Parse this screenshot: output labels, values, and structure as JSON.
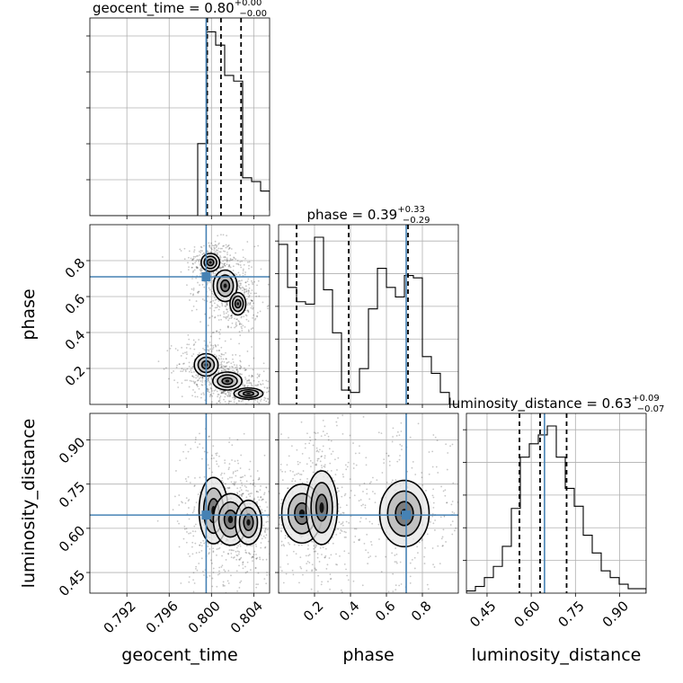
{
  "chart_data": {
    "type": "corner",
    "truth": {
      "geocent_time": 0.7995,
      "phase": 0.71,
      "luminosity_distance": 0.645
    },
    "params": [
      {
        "name": "geocent_time",
        "label": "geocent_time",
        "title_main": "geocent_time = 0.80",
        "title_sup": "+0.00",
        "title_sub": "−0.00",
        "range": [
          0.7885,
          0.8055
        ],
        "ticks": [
          0.792,
          0.796,
          0.8,
          0.804
        ],
        "tick_labels": [
          "0.792",
          "0.796",
          "0.800",
          "0.804"
        ],
        "quantiles": [
          0.7996,
          0.8009,
          0.8028
        ]
      },
      {
        "name": "phase",
        "label": "phase",
        "title_main": "phase = 0.39",
        "title_sup": "+0.33",
        "title_sub": "−0.29",
        "range": [
          0.0,
          1.0
        ],
        "ticks": [
          0.2,
          0.4,
          0.6,
          0.8
        ],
        "tick_labels": [
          "0.2",
          "0.4",
          "0.6",
          "0.8"
        ],
        "quantiles": [
          0.1,
          0.39,
          0.72
        ]
      },
      {
        "name": "luminosity_distance",
        "label": "luminosity_distance",
        "title_main": "luminosity_distance = 0.63",
        "title_sup": "+0.09",
        "title_sub": "−0.07",
        "range": [
          0.38,
          0.99
        ],
        "ticks": [
          0.45,
          0.6,
          0.75,
          0.9
        ],
        "tick_labels": [
          "0.45",
          "0.60",
          "0.75",
          "0.90"
        ],
        "quantiles": [
          0.56,
          0.63,
          0.72
        ]
      }
    ],
    "hist1d": {
      "geocent_time": {
        "edges_start": 0.7885,
        "bin_width": 0.00085,
        "counts": [
          0,
          0,
          0,
          0,
          0,
          0,
          0,
          0,
          0,
          0,
          0,
          0,
          0.38,
          0.97,
          0.9,
          0.74,
          0.71,
          0.2,
          0.18,
          0.13,
          0.03
        ]
      },
      "phase": {
        "edges_start": 0.0,
        "bin_width": 0.05,
        "counts": [
          0.67,
          0.49,
          0.43,
          0.42,
          0.7,
          0.48,
          0.3,
          0.06,
          0.05,
          0.15,
          0.4,
          0.57,
          0.49,
          0.45,
          0.54,
          0.53,
          0.2,
          0.13,
          0.05,
          0.0
        ]
      },
      "luminosity_distance": {
        "edges_start": 0.38,
        "bin_width": 0.0305,
        "counts": [
          0.01,
          0.03,
          0.07,
          0.12,
          0.21,
          0.38,
          0.61,
          0.67,
          0.71,
          0.75,
          0.61,
          0.47,
          0.39,
          0.26,
          0.18,
          0.1,
          0.07,
          0.04,
          0.02,
          0.02
        ]
      }
    },
    "hist2d": [
      {
        "x": "geocent_time",
        "y": "phase",
        "clusters": [
          {
            "cx": 0.7999,
            "cy": 0.79,
            "rx": 0.0007,
            "ry": 0.04,
            "tilt": 0
          },
          {
            "cx": 0.8013,
            "cy": 0.66,
            "rx": 0.0009,
            "ry": 0.07,
            "tilt": 0
          },
          {
            "cx": 0.8025,
            "cy": 0.56,
            "rx": 0.0006,
            "ry": 0.05,
            "tilt": 0
          },
          {
            "cx": 0.7995,
            "cy": 0.22,
            "rx": 0.0009,
            "ry": 0.05,
            "tilt": 0
          },
          {
            "cx": 0.8015,
            "cy": 0.13,
            "rx": 0.0011,
            "ry": 0.04,
            "tilt": 0
          },
          {
            "cx": 0.8035,
            "cy": 0.06,
            "rx": 0.0011,
            "ry": 0.025,
            "tilt": 0
          }
        ]
      },
      {
        "x": "geocent_time",
        "y": "luminosity_distance",
        "clusters": [
          {
            "cx": 0.8002,
            "cy": 0.66,
            "rx": 0.0011,
            "ry": 0.09,
            "tilt": 0
          },
          {
            "cx": 0.8018,
            "cy": 0.63,
            "rx": 0.0013,
            "ry": 0.07,
            "tilt": 0
          },
          {
            "cx": 0.8035,
            "cy": 0.62,
            "rx": 0.001,
            "ry": 0.06,
            "tilt": 0
          }
        ]
      },
      {
        "x": "phase",
        "y": "luminosity_distance",
        "clusters": [
          {
            "cx": 0.13,
            "cy": 0.65,
            "rx": 0.09,
            "ry": 0.08,
            "tilt": 0
          },
          {
            "cx": 0.24,
            "cy": 0.67,
            "rx": 0.07,
            "ry": 0.1,
            "tilt": 0
          },
          {
            "cx": 0.7,
            "cy": 0.65,
            "rx": 0.11,
            "ry": 0.09,
            "tilt": 0
          }
        ]
      }
    ],
    "colors": {
      "truth": "#4682b4",
      "hist": "#000000",
      "grid": "#b0b0b0",
      "scatter": "#000000"
    }
  }
}
